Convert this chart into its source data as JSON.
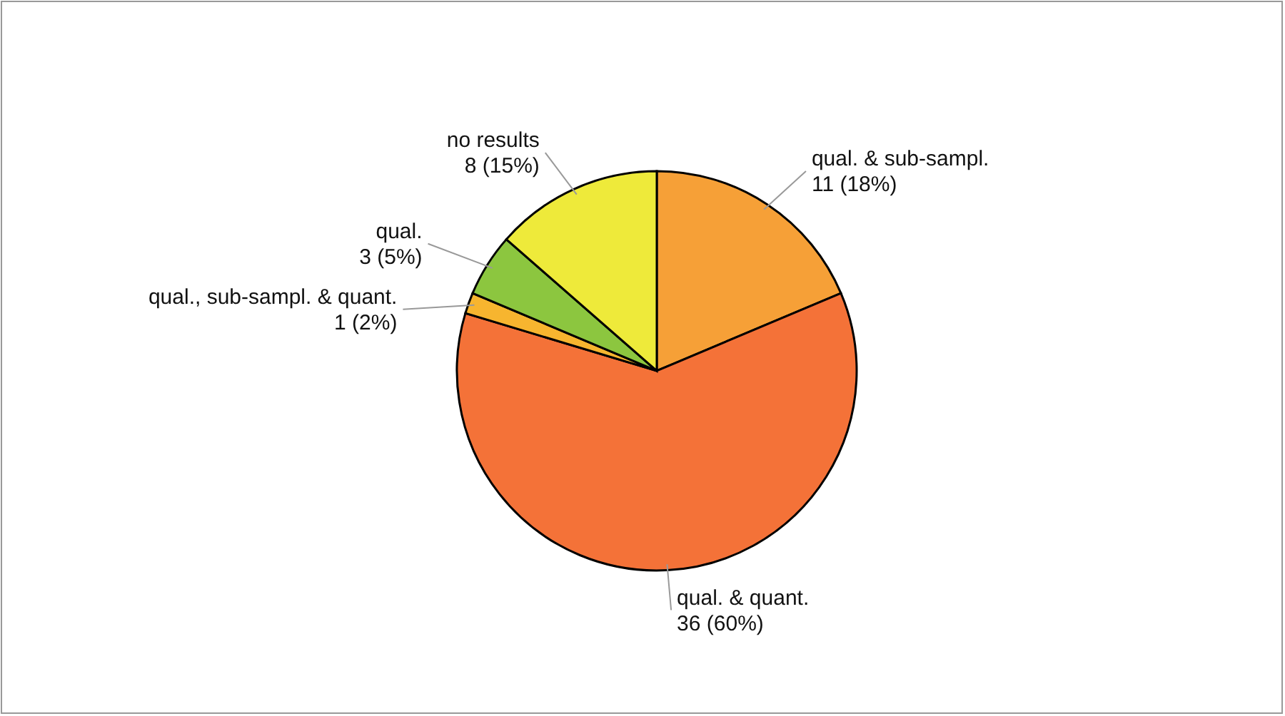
{
  "chart_data": {
    "type": "pie",
    "categories": [
      "qual. & sub-sampl.",
      "qual. & quant.",
      "qual., sub-sampl. & quant.",
      "qual.",
      "no results"
    ],
    "values": [
      11,
      36,
      1,
      3,
      8
    ],
    "value_labels": [
      "11 (18%)",
      "36 (60%)",
      "1 (2%)",
      "3 (5%)",
      "8 (15%)"
    ],
    "colors": [
      "#f6a037",
      "#f47238",
      "#f7b52f",
      "#8cc63f",
      "#eeea3a"
    ]
  }
}
